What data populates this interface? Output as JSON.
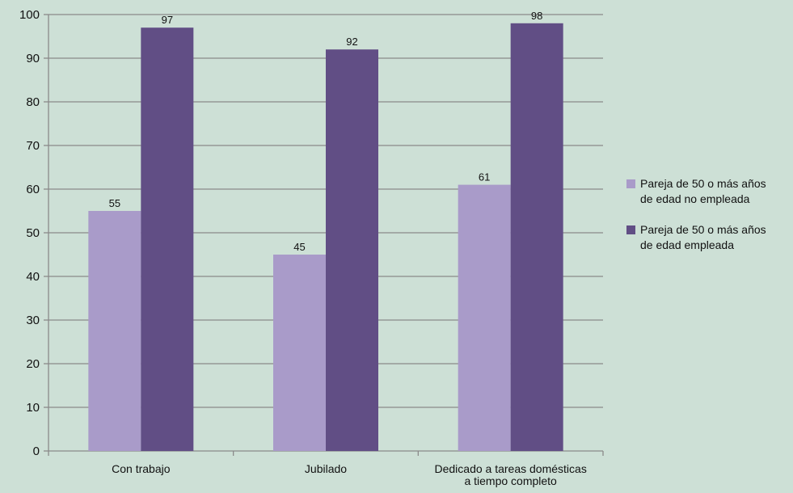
{
  "chart_data": {
    "type": "bar",
    "title": "",
    "xlabel": "",
    "ylabel": "",
    "ylim": [
      0,
      100
    ],
    "yticks": [
      0,
      10,
      20,
      30,
      40,
      50,
      60,
      70,
      80,
      90,
      100
    ],
    "categories": [
      [
        "Con trabajo"
      ],
      [
        "Jubilado"
      ],
      [
        "Dedicado a tareas domésticas",
        "a tiempo completo"
      ]
    ],
    "series": [
      {
        "name": "Pareja de 50 o más años de edad no empleada",
        "values": [
          55,
          45,
          61
        ],
        "color": "#a99bc9"
      },
      {
        "name": "Pareja de 50 o más años de edad empleada",
        "values": [
          97,
          92,
          98
        ],
        "color": "#614e85"
      }
    ],
    "data_labels": true,
    "grid": true,
    "legend_position": "right"
  },
  "legend": {
    "items": [
      {
        "line1": "Pareja de 50 o más años",
        "line2": "de edad no empleada"
      },
      {
        "line1": "Pareja de 50 o más años",
        "line2": "de edad empleada"
      }
    ]
  }
}
